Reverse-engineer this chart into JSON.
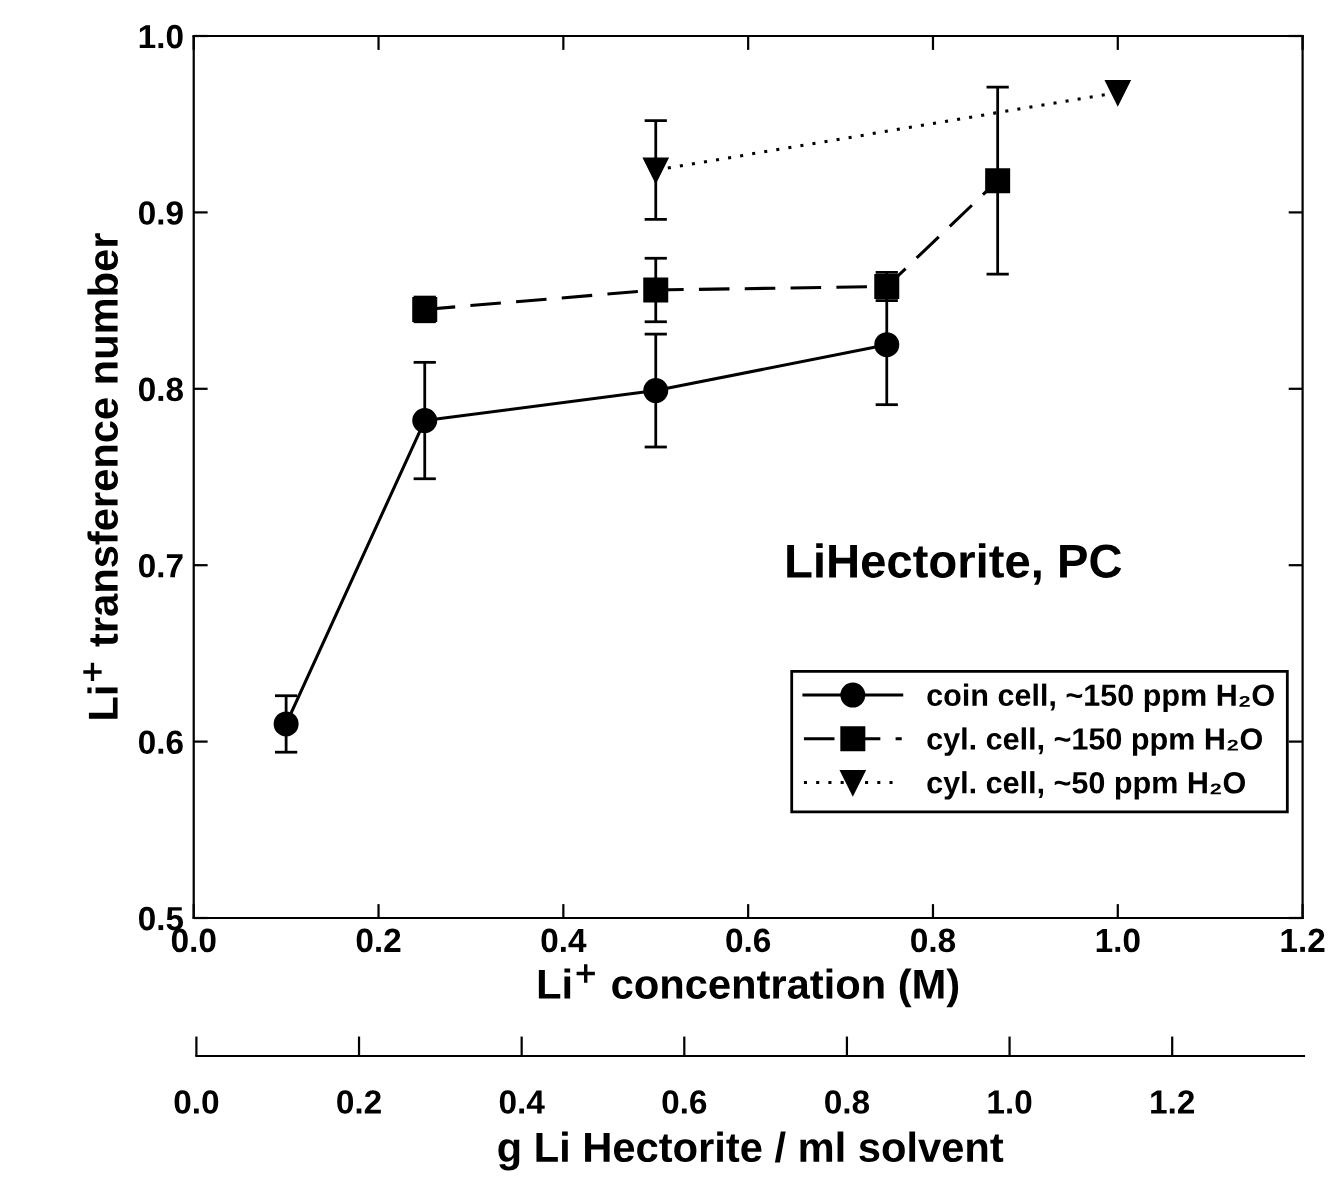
{
  "chart_data": {
    "type": "line",
    "xlabel": "Li$^{+}$ concentration (M)",
    "ylabel": "Li$^{+}$ transference number",
    "x2label": "g Li Hectorite / ml solvent",
    "xlim": [
      0,
      1.2
    ],
    "xticks": [
      {
        "value": 0,
        "label": "0.0"
      },
      0.2,
      0.4,
      0.6,
      0.8,
      {
        "value": 1,
        "label": "1.0"
      },
      1.2
    ],
    "ylim": [
      0.5,
      1.0
    ],
    "yticks": [
      0.5,
      0.6,
      0.7,
      0.8,
      0.9,
      {
        "value": 1,
        "label": "1.0"
      }
    ],
    "x2lim": [
      0,
      1.362
    ],
    "x2ticks": [
      {
        "value": 0,
        "label": "0.0"
      },
      0.2,
      0.4,
      0.6,
      0.8,
      {
        "value": 1,
        "label": "1.0"
      },
      1.2
    ],
    "annotations": [
      "LiHectorite, PC"
    ],
    "legend": "right",
    "grid": false,
    "series": [
      {
        "name": "coin cell, ~150 ppm H₂O",
        "color": "#000000",
        "marker": "circle",
        "line_style": "solid",
        "x": [
          0.1,
          0.25,
          0.5,
          0.75
        ],
        "values": [
          0.61,
          0.782,
          0.799,
          0.825
        ],
        "errors": [
          0.016,
          0.033,
          0.032,
          0.034
        ]
      },
      {
        "name": "cyl. cell, ~150 ppm H₂O",
        "color": "#000000",
        "marker": "square",
        "line_style": "dashed",
        "x": [
          0.25,
          0.5,
          0.75,
          0.87
        ],
        "values": [
          0.845,
          0.856,
          0.858,
          0.918
        ],
        "errors": [
          0.007,
          0.018,
          0.008,
          0.053
        ]
      },
      {
        "name": "cyl. cell, ~50 ppm H₂O",
        "color": "#000000",
        "marker": "triangle",
        "line_style": "dotted",
        "x": [
          0.5,
          1.0
        ],
        "values": [
          0.924,
          0.968
        ],
        "errors": [
          0.028,
          null
        ]
      }
    ]
  }
}
